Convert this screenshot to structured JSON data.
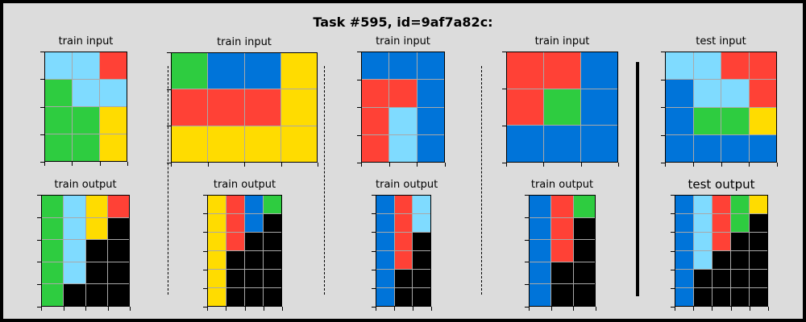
{
  "title": "Task #595, id=9af7a82c:",
  "colors": {
    "1": "#0074D9",
    "2": "#FF4136",
    "3": "#2ECC40",
    "4": "#FFDC00",
    "8": "#7FDBFF",
    "0": "#000000"
  },
  "panels": [
    {
      "title": "train input",
      "grid": [
        [
          8,
          8,
          2
        ],
        [
          3,
          8,
          8
        ],
        [
          3,
          3,
          4
        ],
        [
          3,
          3,
          4
        ]
      ]
    },
    {
      "title": "train input",
      "grid": [
        [
          3,
          1,
          1,
          4
        ],
        [
          2,
          2,
          2,
          4
        ],
        [
          4,
          4,
          4,
          4
        ]
      ]
    },
    {
      "title": "train input",
      "grid": [
        [
          1,
          1,
          1
        ],
        [
          2,
          2,
          1
        ],
        [
          2,
          8,
          1
        ],
        [
          2,
          8,
          1
        ]
      ]
    },
    {
      "title": "train input",
      "grid": [
        [
          2,
          2,
          1
        ],
        [
          2,
          3,
          1
        ],
        [
          1,
          1,
          1
        ]
      ]
    },
    {
      "title": "test input",
      "grid": [
        [
          8,
          8,
          2,
          2
        ],
        [
          1,
          8,
          8,
          2
        ],
        [
          1,
          3,
          3,
          4
        ],
        [
          1,
          1,
          1,
          1
        ]
      ]
    },
    {
      "title": "train output",
      "grid": [
        [
          3,
          8,
          4,
          2
        ],
        [
          3,
          8,
          4,
          0
        ],
        [
          3,
          8,
          0,
          0
        ],
        [
          3,
          8,
          0,
          0
        ],
        [
          3,
          0,
          0,
          0
        ]
      ]
    },
    {
      "title": "train output",
      "grid": [
        [
          4,
          2,
          1,
          3
        ],
        [
          4,
          2,
          1,
          0
        ],
        [
          4,
          2,
          0,
          0
        ],
        [
          4,
          0,
          0,
          0
        ],
        [
          4,
          0,
          0,
          0
        ],
        [
          4,
          0,
          0,
          0
        ]
      ]
    },
    {
      "title": "train output",
      "grid": [
        [
          1,
          2,
          8
        ],
        [
          1,
          2,
          8
        ],
        [
          1,
          2,
          0
        ],
        [
          1,
          2,
          0
        ],
        [
          1,
          0,
          0
        ],
        [
          1,
          0,
          0
        ]
      ]
    },
    {
      "title": "train output",
      "grid": [
        [
          1,
          2,
          3
        ],
        [
          1,
          2,
          0
        ],
        [
          1,
          2,
          0
        ],
        [
          1,
          0,
          0
        ],
        [
          1,
          0,
          0
        ]
      ]
    },
    {
      "title": "test output",
      "grid": [
        [
          1,
          8,
          2,
          3,
          4
        ],
        [
          1,
          8,
          2,
          3,
          0
        ],
        [
          1,
          8,
          2,
          0,
          0
        ],
        [
          1,
          8,
          0,
          0,
          0
        ],
        [
          1,
          0,
          0,
          0,
          0
        ],
        [
          1,
          0,
          0,
          0,
          0
        ]
      ]
    }
  ]
}
